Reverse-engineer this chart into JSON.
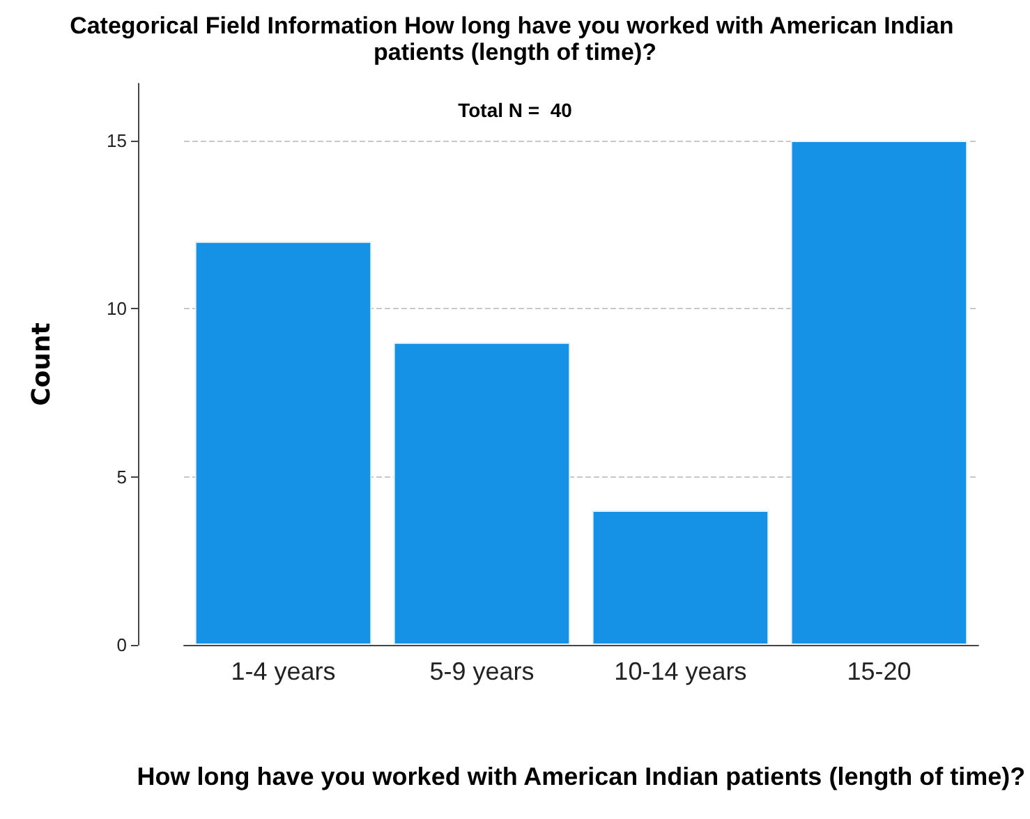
{
  "chart_data": {
    "type": "bar",
    "title": "Categorical Field Information How long have you worked with American Indian patients (length of time)?",
    "xlabel": "How long have you worked with American Indian patients (length of time)?",
    "ylabel": "Count",
    "annotations": [
      "Total N =  40"
    ],
    "categories": [
      "1-4 years",
      "5-9 years",
      "10-14 years",
      "15-20"
    ],
    "values": [
      12,
      9,
      4,
      15
    ],
    "color": "#1591e6",
    "ylim": [
      0,
      16.7
    ],
    "yticks": [
      0,
      5,
      10,
      15
    ],
    "grid": "y"
  }
}
